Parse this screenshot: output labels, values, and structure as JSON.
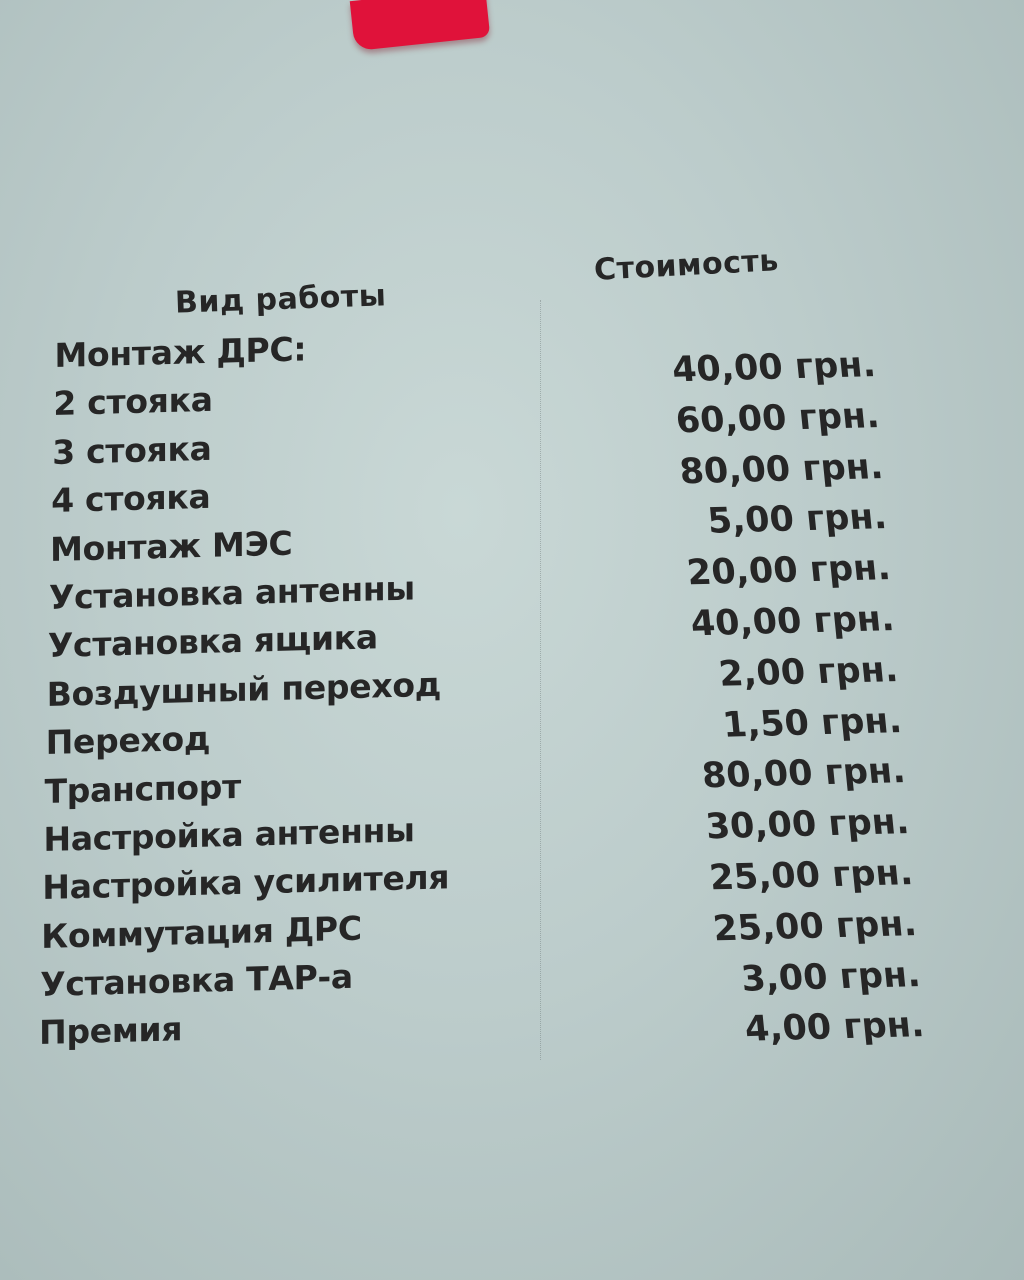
{
  "headers": {
    "work_type": "Вид работы",
    "cost": "Стоимость"
  },
  "work_items": [
    "Монтаж ДРС:",
    "2 стояка",
    "3 стояка",
    "4 стояка",
    "Монтаж МЭС",
    "Установка антенны",
    "Установка ящика",
    "Воздушный переход",
    "Переход",
    "Транспорт",
    "Настройка антенны",
    "Настройка усилителя",
    "Коммутация ДРС",
    "Установка ТАР-а",
    "Премия"
  ],
  "prices": [
    "40,00 грн.",
    "60,00 грн.",
    "80,00 грн.",
    "5,00 грн.",
    "20,00 грн.",
    "40,00 грн.",
    "2,00 грн.",
    "1,50 грн.",
    "80,00 грн.",
    "30,00 грн.",
    "25,00 грн.",
    "25,00 грн.",
    "3,00 грн.",
    "4,00 грн."
  ],
  "colors": {
    "paper": "#bccccb",
    "text": "#262626",
    "tape": "#e0123a"
  }
}
